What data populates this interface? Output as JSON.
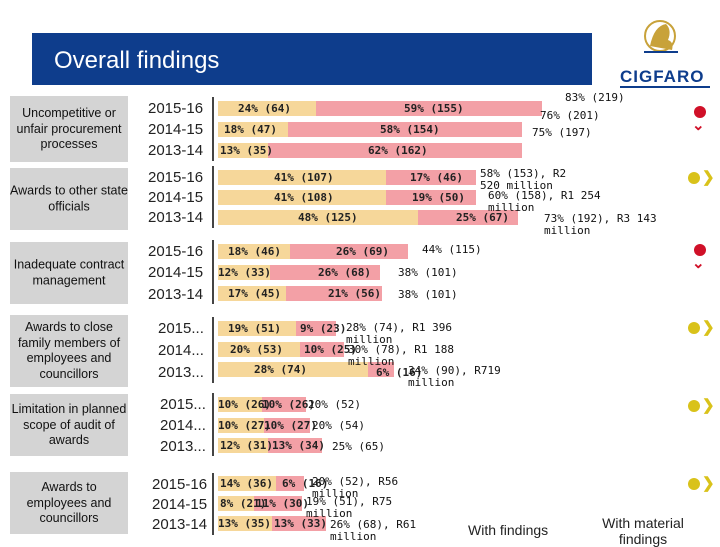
{
  "header": {
    "title": "Overall findings"
  },
  "logo": {
    "name": "CIGFARO",
    "icon": "cigfaro-lion-logo"
  },
  "categories": [
    {
      "label": "Uncompetitive or unfair procurement processes"
    },
    {
      "label": "Awards to other state officials"
    },
    {
      "label": "Inadequate contract management"
    },
    {
      "label": "Awards to close family members of employees and councillors"
    },
    {
      "label": "Limitation in planned scope of audit of awards"
    },
    {
      "label": "Awards to employees and councillors"
    }
  ],
  "groups": [
    {
      "rows": [
        {
          "year": "2015-16",
          "a": "24% (64)",
          "b": "59% (155)",
          "side": "83% (219)"
        },
        {
          "year": "2014-15",
          "a": "18% (47)",
          "b": "58% (154)",
          "side": "76% (201)"
        },
        {
          "year": "2013-14",
          "a": "13% (35)",
          "b": "62% (162)",
          "side": "75% (197)"
        }
      ]
    },
    {
      "rows": [
        {
          "year": "2015-16",
          "a": "41% (107)",
          "b": "17% (46)",
          "side": "58% (153), R2 520 million"
        },
        {
          "year": "2014-15",
          "a": "41% (108)",
          "b": "19% (50)",
          "side": "60% (158), R1 254 million"
        },
        {
          "year": "2013-14",
          "a": "48% (125)",
          "b": "25% (67)",
          "side": "73% (192), R3 143 million"
        }
      ]
    },
    {
      "rows": [
        {
          "year": "2015-16",
          "a": "18% (46)",
          "b": "26% (69)",
          "side": "44% (115)"
        },
        {
          "year": "2014-15",
          "a": "12% (33)",
          "b": "26% (68)",
          "side": "38% (101)"
        },
        {
          "year": "2013-14",
          "a": "17% (45)",
          "b": "21% (56)",
          "side": "38% (101)"
        }
      ]
    },
    {
      "rows": [
        {
          "year": "2015...",
          "a": "19% (51)",
          "b": "9% (23)",
          "side": "28% (74), R1 396 million"
        },
        {
          "year": "2014...",
          "a": "20% (53)",
          "b": "10% (25)",
          "side": "30% (78), R1 188 million"
        },
        {
          "year": "2013...",
          "a": "28% (74)",
          "b": "6% (16)",
          "side": "34% (90), R719 million"
        }
      ]
    },
    {
      "rows": [
        {
          "year": "2015...",
          "a": "10% (26)",
          "b": "10% (26)",
          "side": "20% (52)"
        },
        {
          "year": "2014...",
          "a": "10% (27)",
          "b": "10% (27)",
          "side": "20% (54)"
        },
        {
          "year": "2013...",
          "a": "12% (31)",
          "b": "13% (34)",
          "side": "25% (65)"
        }
      ]
    },
    {
      "rows": [
        {
          "year": "2015-16",
          "a": "14% (36)",
          "b": "6% (16)",
          "side": "20% (52), R56 million"
        },
        {
          "year": "2014-15",
          "a": "8% (21)",
          "b": "11% (30)",
          "side": "19% (51), R75 million"
        },
        {
          "year": "2013-14",
          "a": "13% (35)",
          "b": "13% (33)",
          "side": "26% (68), R61 million"
        }
      ]
    }
  ],
  "indicators": [
    {
      "dot": "red-dot-icon",
      "arrow": "chevron-down-icon",
      "glyph": "⌄",
      "color": "#d01028"
    },
    {
      "dot": "yellow-dot-icon",
      "arrow": "chevron-right-icon",
      "glyph": "❯",
      "color": "#d9c21a"
    },
    {
      "dot": "red-dot-icon",
      "arrow": "chevron-down-icon",
      "glyph": "⌄",
      "color": "#d01028"
    },
    {
      "dot": "yellow-dot-icon",
      "arrow": "chevron-right-icon",
      "glyph": "❯",
      "color": "#d9c21a"
    },
    {
      "dot": "yellow-dot-icon",
      "arrow": "chevron-right-icon",
      "glyph": "❯",
      "color": "#d9c21a"
    },
    {
      "dot": "yellow-dot-icon",
      "arrow": "chevron-right-icon",
      "glyph": "❯",
      "color": "#d9c21a"
    }
  ],
  "legend": {
    "with_findings": "With findings",
    "with_material_findings": "With material findings"
  },
  "colors": {
    "header": "#0e3d8c",
    "segment_a": "#f6d79a",
    "segment_b": "#f3a0a6",
    "red": "#d01028",
    "yellow": "#d9c21a"
  }
}
